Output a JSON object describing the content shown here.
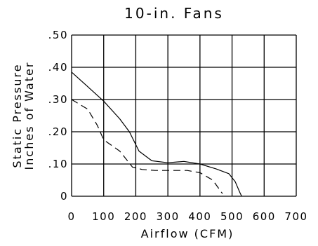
{
  "chart_data": {
    "type": "line",
    "title": "10-in. Fans",
    "xlabel": "Airflow (CFM)",
    "ylabel_line1": "Static Pressure",
    "ylabel_line2": "Inches of Water",
    "xlim": [
      0,
      700
    ],
    "ylim": [
      0,
      0.5
    ],
    "x_ticks": [
      0,
      100,
      200,
      300,
      400,
      500,
      600,
      700
    ],
    "x_tick_labels": [
      "0",
      "100",
      "200",
      "300",
      "400",
      "500",
      "600",
      "700"
    ],
    "y_ticks": [
      0,
      0.1,
      0.2,
      0.3,
      0.4,
      0.5
    ],
    "y_tick_labels": [
      "0",
      ".10",
      ".20",
      ".30",
      ".40",
      ".50"
    ],
    "grid": true,
    "series": [
      {
        "style": "solid",
        "x": [
          0,
          50,
          100,
          150,
          180,
          210,
          250,
          300,
          350,
          400,
          450,
          490,
          510,
          525,
          530
        ],
        "y": [
          0.385,
          0.34,
          0.295,
          0.24,
          0.2,
          0.14,
          0.11,
          0.104,
          0.108,
          0.1,
          0.085,
          0.07,
          0.045,
          0.01,
          0
        ]
      },
      {
        "style": "dashed",
        "x": [
          0,
          50,
          80,
          100,
          150,
          190,
          220,
          260,
          300,
          360,
          400,
          440,
          470
        ],
        "y": [
          0.3,
          0.27,
          0.22,
          0.175,
          0.14,
          0.09,
          0.083,
          0.08,
          0.08,
          0.08,
          0.073,
          0.05,
          0.008
        ]
      }
    ]
  }
}
